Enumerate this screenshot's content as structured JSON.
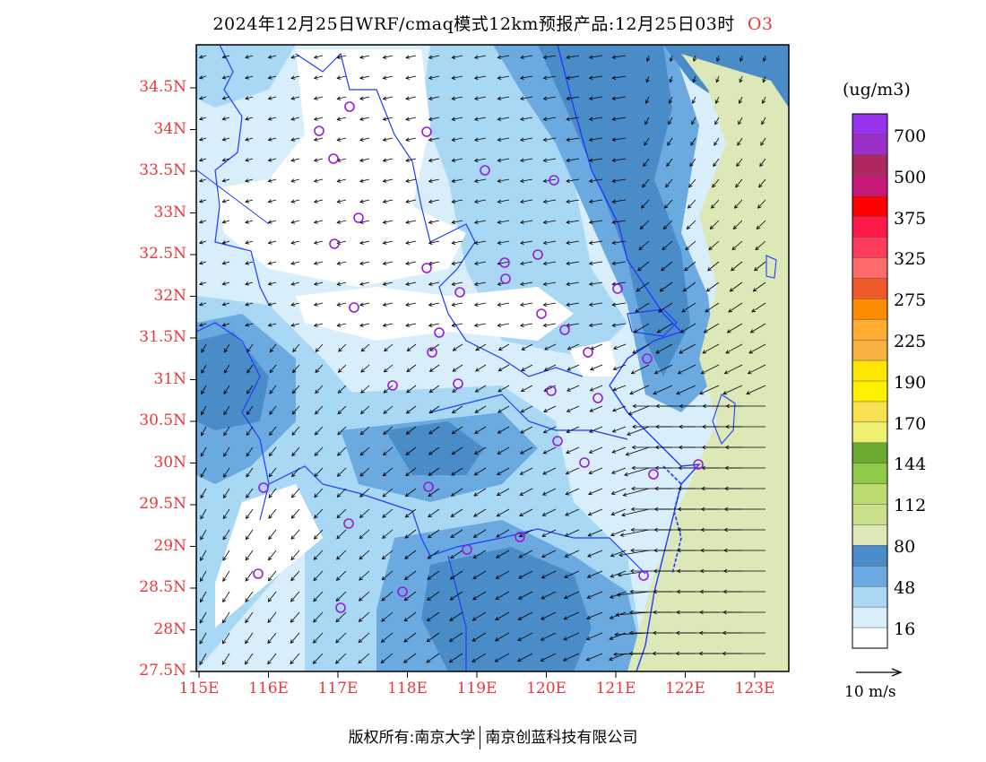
{
  "title": {
    "main": "2024年12月25日WRF/cmaq模式12km预报产品:12月25日03时",
    "species": "O3"
  },
  "footer": {
    "left": "版权所有:南京大学",
    "right": "南京创蓝科技有限公司"
  },
  "axes": {
    "lat_labels": [
      "34.5N",
      "34N",
      "33.5N",
      "33N",
      "32.5N",
      "32N",
      "31.5N",
      "31N",
      "30.5N",
      "30N",
      "29.5N",
      "29N",
      "28.5N",
      "28N",
      "27.5N"
    ],
    "lon_labels": [
      "115E",
      "116E",
      "117E",
      "118E",
      "119E",
      "120E",
      "121E",
      "122E",
      "123E"
    ],
    "lon_range": [
      115,
      123.5
    ],
    "lat_range": [
      27.5,
      34.9
    ]
  },
  "colorbar": {
    "unit": "(ug/m3)",
    "labels": [
      "700",
      "500",
      "375",
      "325",
      "275",
      "225",
      "190",
      "170",
      "144",
      "112",
      "80",
      "48",
      "16"
    ],
    "colors": [
      "#9933ee",
      "#9b2fc8",
      "#b0295e",
      "#c8187a",
      "#ff0000",
      "#ff1a4a",
      "#ff3c5c",
      "#ff6a6a",
      "#f05a2a",
      "#ff8c00",
      "#ffac30",
      "#f8b040",
      "#ffe600",
      "#fff000",
      "#f8e050",
      "#f0f070",
      "#6aaa30",
      "#90c848",
      "#bcdc70",
      "#c8e08a",
      "#dde8b8",
      "#4a8cc8",
      "#6aaae0",
      "#a8d8f4",
      "#d8eefa",
      "#ffffff"
    ]
  },
  "legend": {
    "vector_label": "10 m/s"
  },
  "site_count": 41
}
